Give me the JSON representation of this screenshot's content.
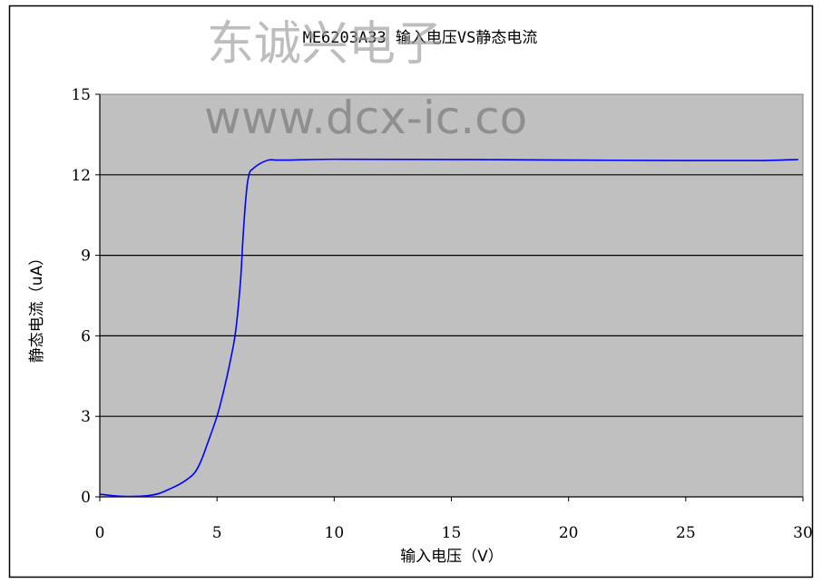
{
  "watermark": {
    "chinese": "东诚兴电子",
    "url": "www.dcx-ic.co"
  },
  "chart_data": {
    "type": "line",
    "title": "ME6203A33 输入电压VS静态电流",
    "xlabel": "输入电压（V）",
    "ylabel": "静态电流（uA）",
    "xlim": [
      0,
      30
    ],
    "ylim": [
      0,
      15
    ],
    "xticks": [
      0,
      5,
      10,
      15,
      20,
      25,
      30
    ],
    "yticks": [
      0,
      3,
      6,
      9,
      12,
      15
    ],
    "grid": "horizontal",
    "legend": "none",
    "colors": {
      "plot_background": "#c0c0c0",
      "line": "#0000ff",
      "gridline": "#000000"
    },
    "series": [
      {
        "x": [
          0,
          0.5,
          1,
          1.5,
          2,
          2.5,
          3,
          3.5,
          4,
          4.3,
          4.6,
          5,
          5.3,
          5.6,
          5.8,
          6,
          6.1,
          6.2,
          6.3,
          6.4,
          6.5,
          6.8,
          7.2,
          7.5,
          8,
          10,
          15,
          20,
          25,
          28,
          29.8
        ],
        "y": [
          0.1,
          0.05,
          0.02,
          0.02,
          0.04,
          0.12,
          0.3,
          0.52,
          0.85,
          1.3,
          2.0,
          3.0,
          4.0,
          5.2,
          6.2,
          8.0,
          9.5,
          10.8,
          11.7,
          12.1,
          12.2,
          12.4,
          12.55,
          12.55,
          12.55,
          12.58,
          12.57,
          12.55,
          12.53,
          12.53,
          12.57
        ]
      }
    ]
  }
}
